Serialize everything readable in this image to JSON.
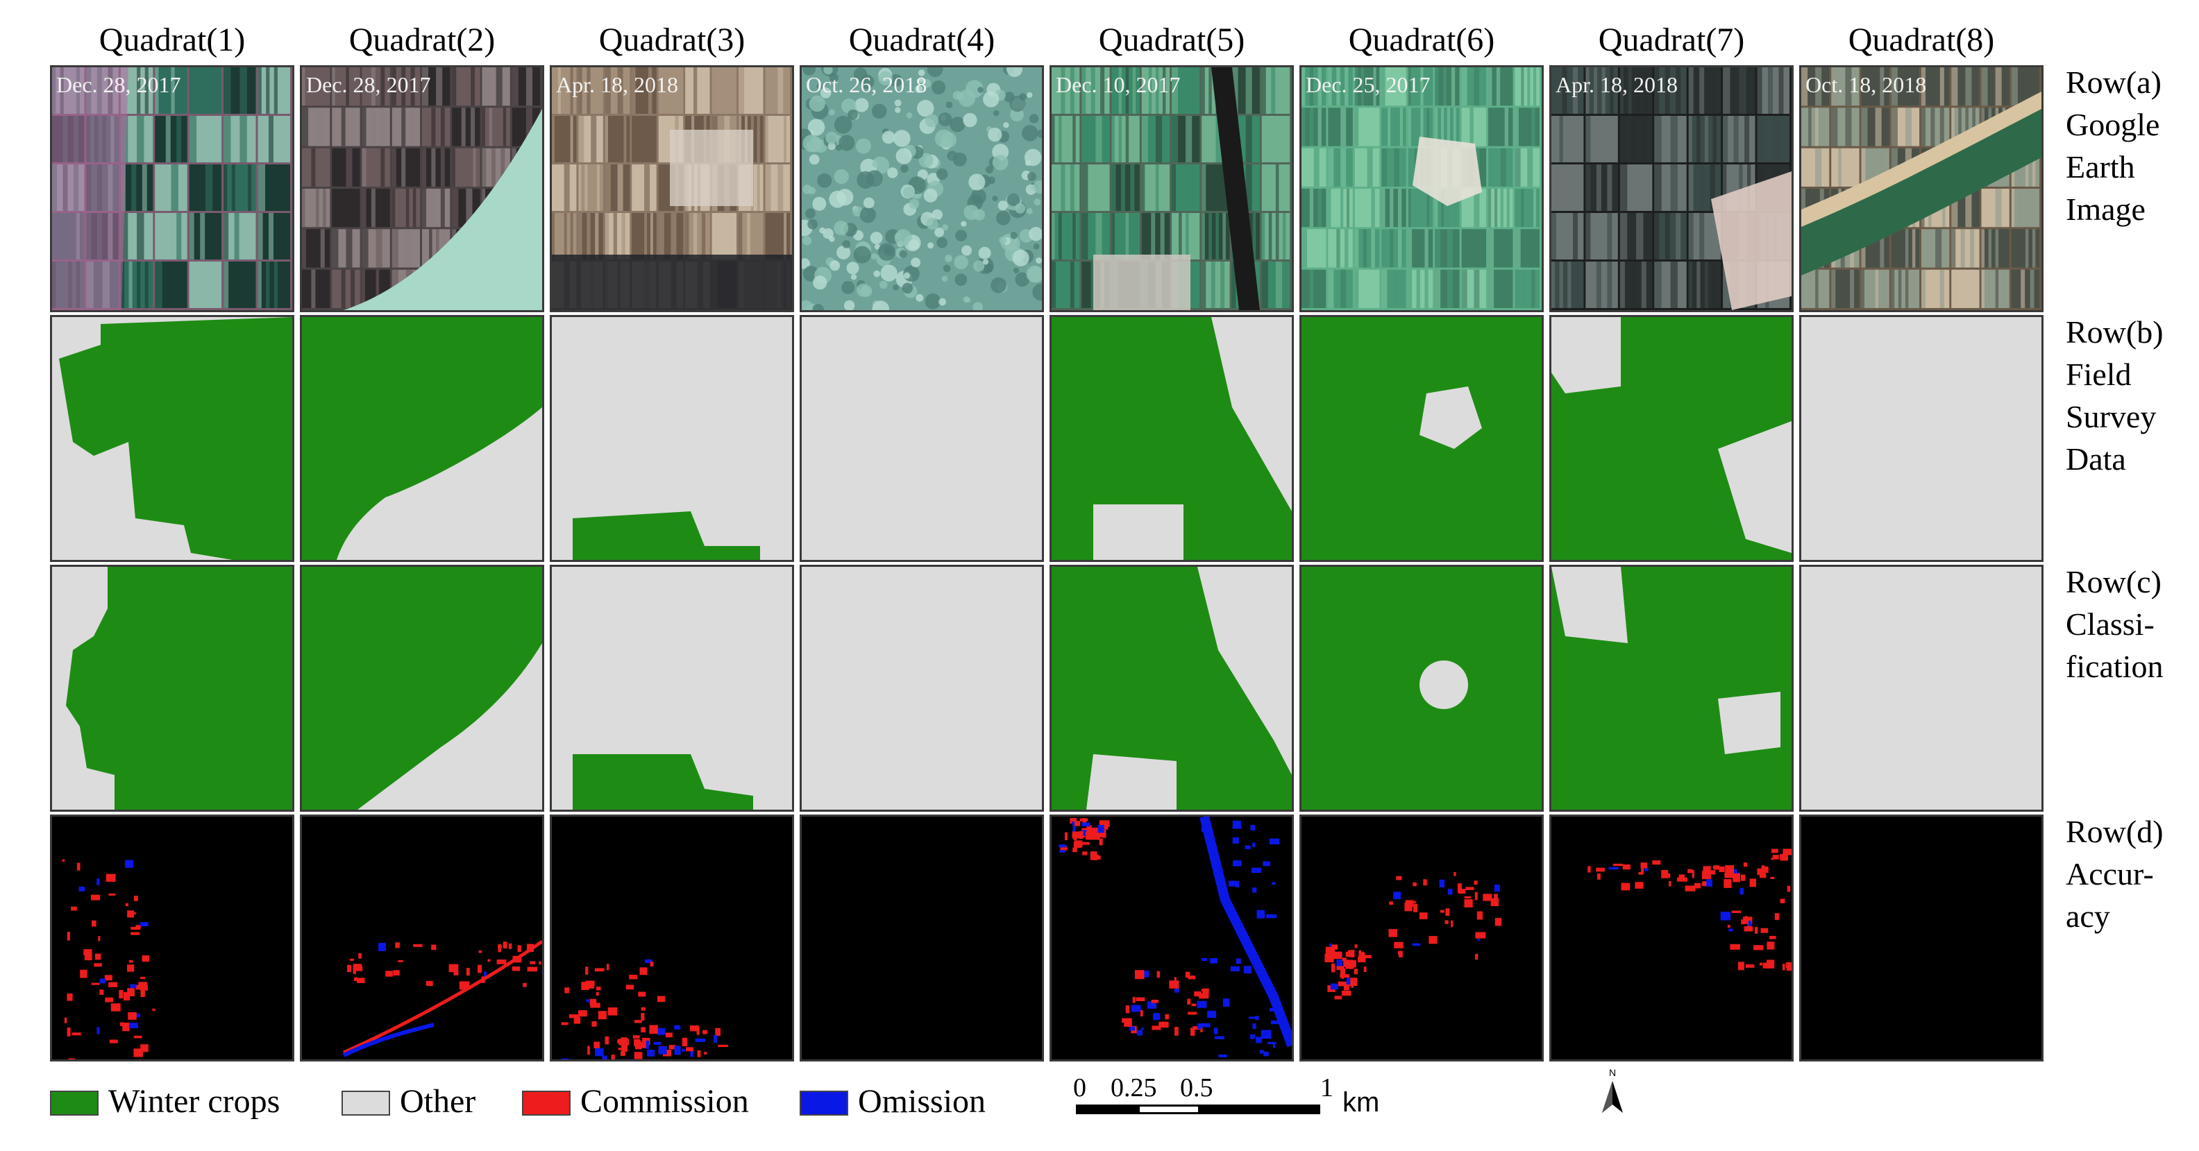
{
  "quadrats": [
    {
      "title": "Quadrat(1)",
      "date": "Dec. 28, 2017"
    },
    {
      "title": "Quadrat(2)",
      "date": "Dec. 28, 2017"
    },
    {
      "title": "Quadrat(3)",
      "date": "Apr. 18, 2018"
    },
    {
      "title": "Quadrat(4)",
      "date": "Oct. 26, 2018"
    },
    {
      "title": "Quadrat(5)",
      "date": "Dec. 10, 2017"
    },
    {
      "title": "Quadrat(6)",
      "date": "Dec. 25, 2017"
    },
    {
      "title": "Quadrat(7)",
      "date": "Apr. 18, 2018"
    },
    {
      "title": "Quadrat(8)",
      "date": "Oct. 18, 2018"
    }
  ],
  "rows": [
    {
      "lines": [
        "Row(a)",
        "Google",
        "Earth",
        "Image"
      ]
    },
    {
      "lines": [
        "Row(b)",
        "Field",
        "Survey",
        "Data"
      ]
    },
    {
      "lines": [
        "Row(c)",
        "Classi-",
        "fication"
      ]
    },
    {
      "lines": [
        "Row(d)",
        "Accur-",
        "acy"
      ]
    }
  ],
  "legend": [
    {
      "label": "Winter crops",
      "color": "#1e8c14"
    },
    {
      "label": "Other",
      "color": "#dcdcdc"
    },
    {
      "label": "Commission",
      "color": "#ee1c1c"
    },
    {
      "label": "Omission",
      "color": "#0a18e6"
    }
  ],
  "scale_bar": {
    "ticks": [
      "0",
      "0.25",
      "0.5",
      "1"
    ],
    "unit": "km"
  },
  "north_arrow": {
    "label": "N"
  },
  "colors": {
    "crop": "#1e8c14",
    "other": "#dcdcdc",
    "commission": "#ee1c1c",
    "omission": "#0a18e6",
    "background": "#000000"
  }
}
